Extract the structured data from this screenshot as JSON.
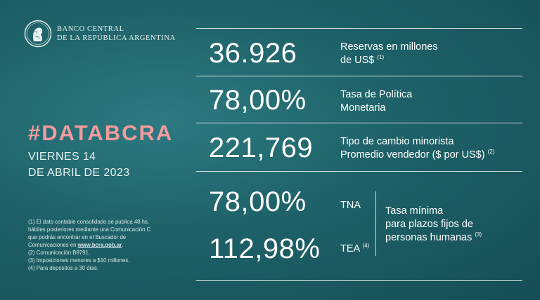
{
  "header": {
    "bank_line1": "BANCO CENTRAL",
    "bank_line2": "DE LA REPÚBLICA ARGENTINA"
  },
  "brand": {
    "hashtag": "#DATABCRA",
    "date_line1": "VIERNES 14",
    "date_line2": "DE ABRIL DE 2023"
  },
  "stats": [
    {
      "value": "36.926",
      "label_line1": "Reservas en millones",
      "label_line2": "de US$",
      "note": "(1)"
    },
    {
      "value": "78,00%",
      "label_line1": "Tasa de Política",
      "label_line2": "Monetaria",
      "note": ""
    },
    {
      "value": "221,769",
      "label_line1": "Tipo de cambio minorista",
      "label_line2": "Promedio vendedor ($ por US$)",
      "note": "(2)"
    }
  ],
  "rates": {
    "tna_value": "78,00%",
    "tna_label": "TNA",
    "tea_value": "112,98%",
    "tea_label": "TEA",
    "tea_note": "(4)",
    "desc_line1": "Tasa mínima",
    "desc_line2": "para plazos fijos de",
    "desc_line3": "personas humanas",
    "desc_note": "(3)"
  },
  "footnotes": {
    "n1_line1": "(1) El dato contable consolidado se publica 48 hs.",
    "n1_line2": "hábiles posteriores mediante una Comunicación C",
    "n1_line3": "que podrás encontrar en el Buscador de",
    "n1_line4_prefix": "Comunicaciones en",
    "n1_link": "www.bcra.gob.ar",
    "n1_line4_suffix": ".",
    "n2": "(2) Comunicación B9791.",
    "n3": "(3) Imposiciones menores a $10 millones.",
    "n4": "(4) Para depósitos a 30 días."
  },
  "colors": {
    "background": "#1e6168",
    "hashtag": "#f29b9e",
    "text": "#ffffff"
  }
}
